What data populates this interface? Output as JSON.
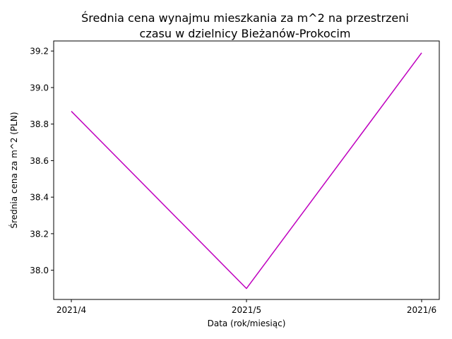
{
  "chart_data": {
    "type": "line",
    "title_line1": "Średnia cena wynajmu mieszkania za m^2 na przestrzeni",
    "title_line2": "czasu w dzielnicy  Bieżanów-Prokocim",
    "xlabel": "Data (rok/miesiąc)",
    "ylabel": "Średnia cena za m^2 (PLN)",
    "categories": [
      "2021/4",
      "2021/5",
      "2021/6"
    ],
    "values": [
      38.87,
      37.9,
      39.19
    ],
    "ylim": [
      37.84,
      39.255
    ],
    "yticks": [
      38.0,
      38.2,
      38.4,
      38.6,
      38.8,
      39.0,
      39.2
    ],
    "ytick_labels": [
      "38.0",
      "38.2",
      "38.4",
      "38.6",
      "38.8",
      "39.0",
      "39.2"
    ],
    "line_color": "#bf00bf",
    "grid": false,
    "legend": "none"
  }
}
